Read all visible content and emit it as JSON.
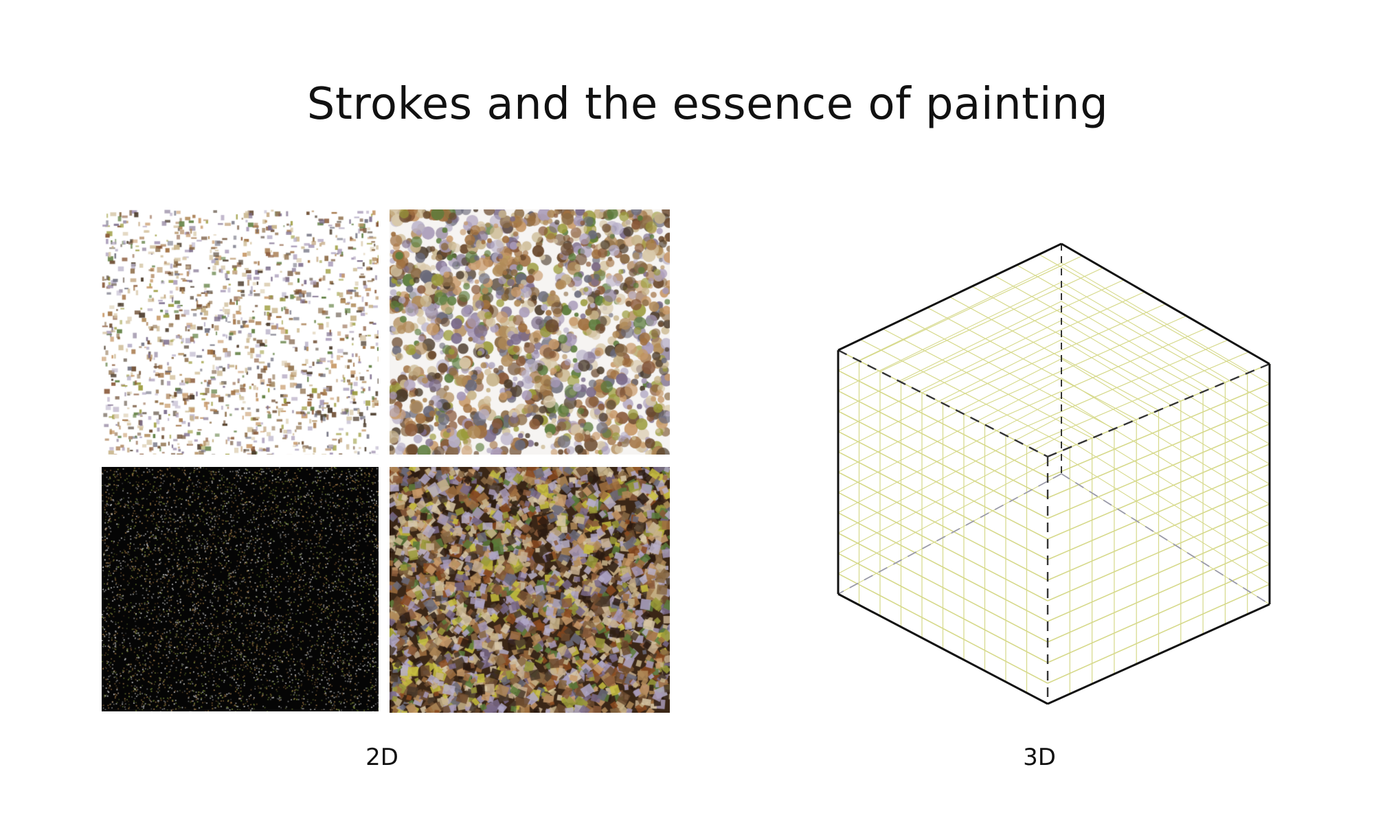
{
  "slide": {
    "title": "Strokes and the essence of painting",
    "label_2d": "2D",
    "label_3d": "3D"
  },
  "panels": [
    {
      "name": "sparse-small-strokes",
      "background": "#ffffff"
    },
    {
      "name": "round-dab-strokes",
      "background": "#f6f4f2"
    },
    {
      "name": "dark-dotted-strokes",
      "background": "#050505"
    },
    {
      "name": "dense-square-strokes",
      "background": "#3a2616"
    }
  ],
  "colors": {
    "grid_line": "#d6d98a",
    "cube_edge": "#111111",
    "hidden_edge": "#333333",
    "palette": [
      "#6b4a2e",
      "#8a6a44",
      "#b08a58",
      "#9a9a3a",
      "#c8b48a",
      "#7a6a8a",
      "#a89ab8",
      "#4a3a2a",
      "#c89a6a",
      "#5a7a3a",
      "#b8b0c8",
      "#8a5a3a",
      "#d8c8a8",
      "#6a6a7a",
      "#a07040"
    ]
  }
}
